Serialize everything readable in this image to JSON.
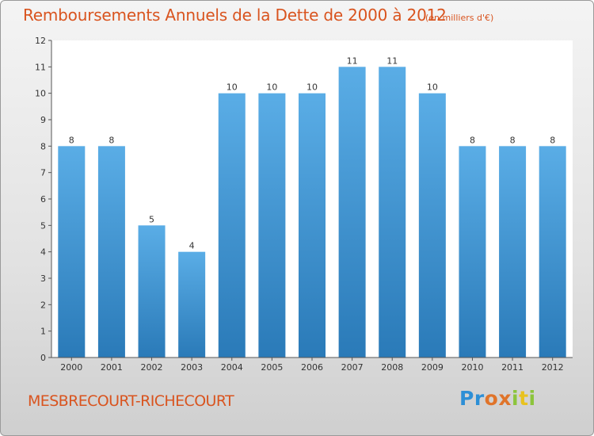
{
  "chart_data": {
    "type": "bar",
    "title": "Remboursements Annuels de la Dette de 2000 à 2012",
    "unit_note": "(en milliers d'€)",
    "xlabel": "",
    "ylabel": "",
    "categories": [
      "2000",
      "2001",
      "2002",
      "2003",
      "2004",
      "2005",
      "2006",
      "2007",
      "2008",
      "2009",
      "2010",
      "2011",
      "2012"
    ],
    "values": [
      8,
      8,
      5,
      4,
      10,
      10,
      10,
      11,
      11,
      10,
      8,
      8,
      8
    ],
    "data_labels": [
      "8",
      "8",
      "5",
      "4",
      "10",
      "10",
      "10",
      "11",
      "11",
      "10",
      "8",
      "8",
      "8"
    ],
    "y_ticks": [
      0,
      1,
      2,
      3,
      4,
      5,
      6,
      7,
      8,
      9,
      10,
      11,
      12
    ],
    "ylim": [
      0,
      12
    ],
    "grid": false,
    "legend": "none",
    "bar_color_top": "#5aade6",
    "bar_color_bottom": "#2a7ab8",
    "plot_background": "#ffffff"
  },
  "footer": {
    "commune": "MESBRECOURT-RICHECOURT",
    "logo_letters": [
      {
        "char": "P",
        "color": "#2d8fd6"
      },
      {
        "char": "r",
        "color": "#2d8fd6"
      },
      {
        "char": "o",
        "color": "#e0742a"
      },
      {
        "char": "x",
        "color": "#e0742a"
      },
      {
        "char": "i",
        "color": "#8cc43c"
      },
      {
        "char": "t",
        "color": "#e8c21f"
      },
      {
        "char": "i",
        "color": "#8cc43c"
      }
    ]
  },
  "colors": {
    "title": "#d9541f",
    "axis": "#555555"
  }
}
